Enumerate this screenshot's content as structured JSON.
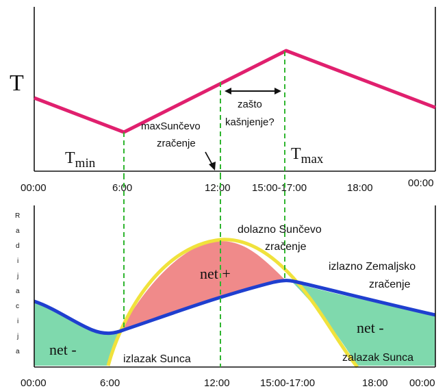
{
  "top_panel": {
    "axis_symbol": "T",
    "tmin_base": "T",
    "tmin_sub": "min",
    "tmax_base": "T",
    "tmax_sub": "max",
    "annotation_delay_line1": "zašto",
    "annotation_delay_line2": "kašnjenje?",
    "annotation_max_line1": "maxSunčevo",
    "annotation_max_line2": "zračenje",
    "x_ticks": [
      "00:00",
      "6:00",
      "12:00",
      "15:00-17:00",
      "18:00",
      "00:00"
    ]
  },
  "bottom_panel": {
    "y_axis_letters": [
      "R",
      "a",
      "d",
      "i",
      "j",
      "a",
      "c",
      "i",
      "j",
      "a"
    ],
    "label_net_positive": "net +",
    "label_net_negative_left": "net -",
    "label_net_negative_right": "net -",
    "label_incoming_line1": "dolazno Sunčevo",
    "label_incoming_line2": "zračenje",
    "label_outgoing_line1": "izlazno Zemaljsko",
    "label_outgoing_line2": "zračenje",
    "label_sunrise": "izlazak Sunca",
    "label_sunset": "zalazak Sunca",
    "x_ticks": [
      "00:00",
      "6:00",
      "12:00",
      "15:00-17:00",
      "18:00",
      "00:00"
    ]
  },
  "colors": {
    "temperature_curve": "#e0206e",
    "solar_curve": "#f0e23c",
    "earth_curve": "#1f3fcf",
    "net_positive_fill": "#f08a8a",
    "net_negative_fill": "#7fd9ad",
    "guide_lines": "#2fb52f"
  }
}
